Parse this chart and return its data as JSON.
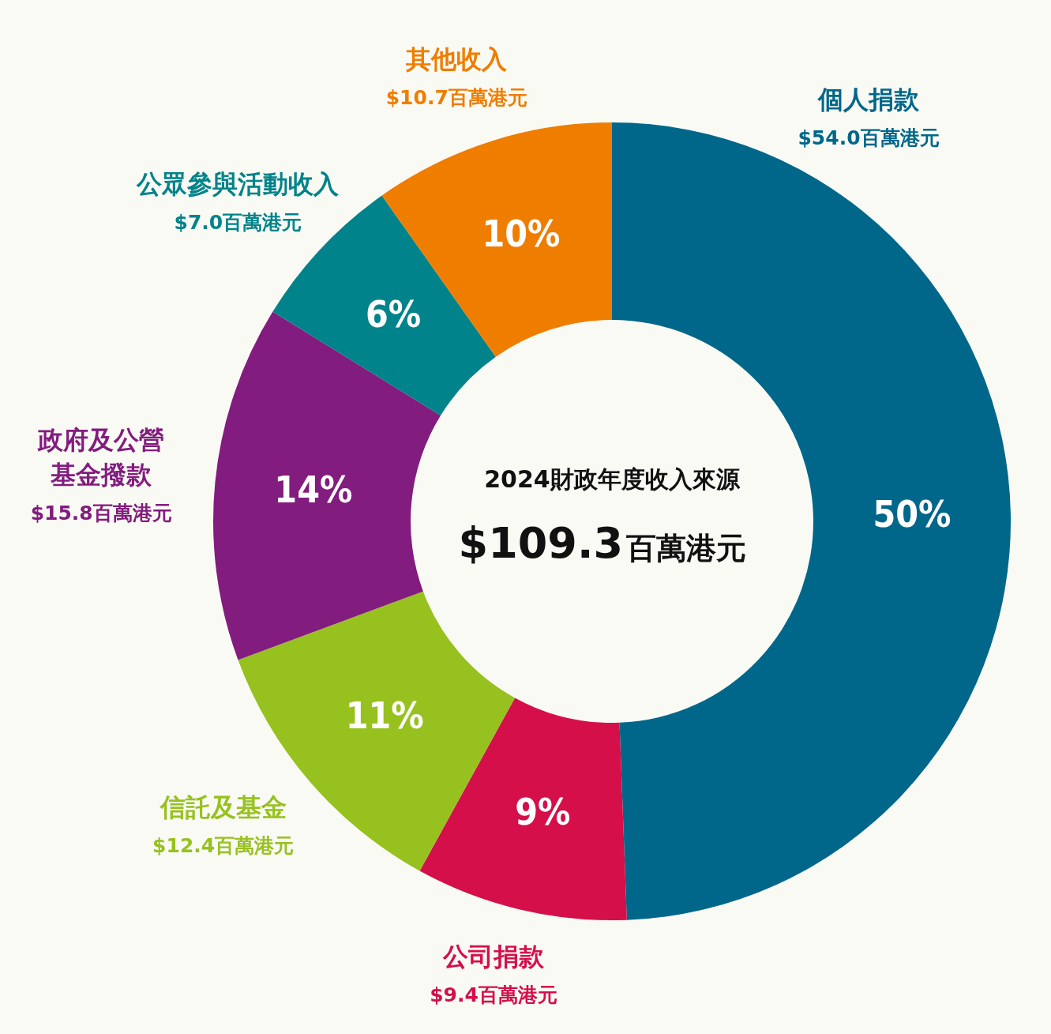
{
  "chart_data": {
    "type": "donut",
    "title": "2024財政年度收入來源",
    "subtitle": "$109.3百萬港元",
    "categories": [
      "個人捐款",
      "公司捐款",
      "信託及基金",
      "政府及公營基金撥款",
      "公眾參與活動收入",
      "其他收入"
    ],
    "values": [
      54.0,
      9.4,
      12.4,
      15.8,
      7.0,
      10.7
    ],
    "colors": [
      "#00678a",
      "#d40f4a",
      "#97c11f",
      "#821c7e",
      "#00838a",
      "#ef7d00"
    ],
    "value_labels": [
      "$54.0百萬港元",
      "$9.4百萬港元",
      "$12.4百萬港元",
      "$15.8百萬港元",
      "$7.0百萬港元",
      "$10.7百萬港元"
    ],
    "annotations": [
      "50%",
      "9%",
      "11%",
      "14%",
      "6%",
      "10%"
    ]
  }
}
